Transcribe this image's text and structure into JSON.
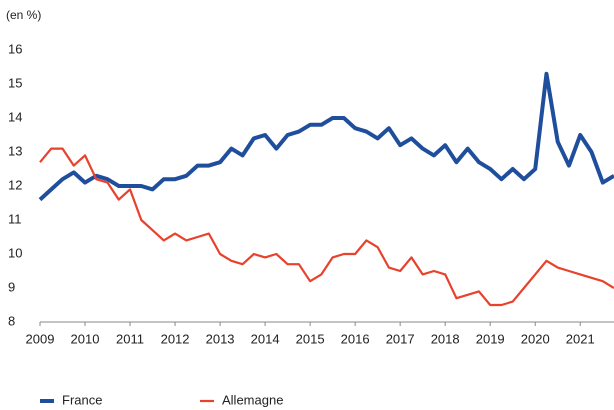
{
  "chart_data": {
    "type": "line",
    "subtitle": "(en %)",
    "x": [
      2009,
      2009.25,
      2009.5,
      2009.75,
      2010,
      2010.25,
      2010.5,
      2010.75,
      2011,
      2011.25,
      2011.5,
      2011.75,
      2012,
      2012.25,
      2012.5,
      2012.75,
      2013,
      2013.25,
      2013.5,
      2013.75,
      2014,
      2014.25,
      2014.5,
      2014.75,
      2015,
      2015.25,
      2015.5,
      2015.75,
      2016,
      2016.25,
      2016.5,
      2016.75,
      2017,
      2017.25,
      2017.5,
      2017.75,
      2018,
      2018.25,
      2018.5,
      2018.75,
      2019,
      2019.25,
      2019.5,
      2019.75,
      2020,
      2020.25,
      2020.5,
      2020.75,
      2021,
      2021.25,
      2021.5,
      2021.75
    ],
    "series": [
      {
        "name": "France",
        "color": "#1f4e9c",
        "values": [
          11.6,
          11.9,
          12.2,
          12.4,
          12.1,
          12.3,
          12.2,
          12.0,
          12.0,
          12.0,
          11.9,
          12.2,
          12.2,
          12.3,
          12.6,
          12.6,
          12.7,
          13.1,
          12.9,
          13.4,
          13.5,
          13.1,
          13.5,
          13.6,
          13.8,
          13.8,
          14.0,
          14.0,
          13.7,
          13.6,
          13.4,
          13.7,
          13.2,
          13.4,
          13.1,
          12.9,
          13.2,
          12.7,
          13.1,
          12.7,
          12.5,
          12.2,
          12.5,
          12.2,
          12.5,
          15.3,
          13.3,
          12.6,
          13.5,
          13.0,
          12.1,
          12.3
        ]
      },
      {
        "name": "Allemagne",
        "color": "#e8412c",
        "values": [
          12.7,
          13.1,
          13.1,
          12.6,
          12.9,
          12.2,
          12.1,
          11.6,
          11.9,
          11.0,
          10.7,
          10.4,
          10.6,
          10.4,
          10.5,
          10.6,
          10.0,
          9.8,
          9.7,
          10.0,
          9.9,
          10.0,
          9.7,
          9.7,
          9.2,
          9.4,
          9.9,
          10.0,
          10.0,
          10.4,
          10.2,
          9.6,
          9.5,
          9.9,
          9.4,
          9.5,
          9.4,
          8.7,
          8.8,
          8.9,
          8.5,
          8.5,
          8.6,
          9.0,
          9.4,
          9.8,
          9.6,
          9.5,
          9.4,
          9.3,
          9.2,
          9.0
        ]
      }
    ],
    "xlim": [
      2009,
      2021.75
    ],
    "xticks": [
      2009,
      2010,
      2011,
      2012,
      2013,
      2014,
      2015,
      2016,
      2017,
      2018,
      2019,
      2020,
      2021
    ],
    "ylim": [
      8,
      16
    ],
    "yticks": [
      8,
      9,
      10,
      11,
      12,
      13,
      14,
      15,
      16
    ],
    "grid": false
  }
}
